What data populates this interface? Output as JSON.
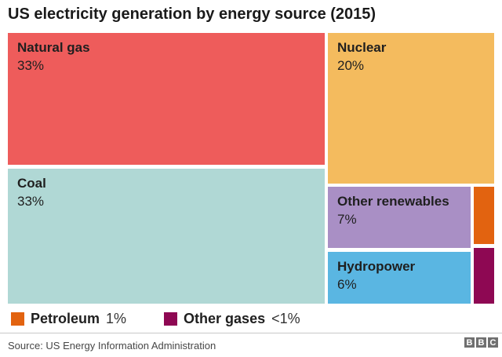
{
  "title": "US electricity generation by energy source (2015)",
  "chart_data": {
    "type": "treemap",
    "title": "US electricity generation by energy source (2015)",
    "series": [
      {
        "name": "Natural gas",
        "value": 33,
        "value_label": "33%",
        "color": "#ee5c5b"
      },
      {
        "name": "Coal",
        "value": 33,
        "value_label": "33%",
        "color": "#b0d8d5"
      },
      {
        "name": "Nuclear",
        "value": 20,
        "value_label": "20%",
        "color": "#f4bb5e"
      },
      {
        "name": "Other renewables",
        "value": 7,
        "value_label": "7%",
        "color": "#a98fc5"
      },
      {
        "name": "Hydropower",
        "value": 6,
        "value_label": "6%",
        "color": "#5ab6e2"
      },
      {
        "name": "Petroleum",
        "value": 1,
        "value_label": "1%",
        "color": "#e26310"
      },
      {
        "name": "Other gases",
        "value": 0.5,
        "value_label": "<1%",
        "color": "#8e0853"
      }
    ],
    "layout_hint": "large tiles labeled inline; Petroleum and Other gases shown as thin right-edge strips with legend below"
  },
  "legend": {
    "items": [
      {
        "label": "Petroleum",
        "value": "1%",
        "color": "#e26310"
      },
      {
        "label": "Other gases",
        "value": "<1%",
        "color": "#8e0853"
      }
    ]
  },
  "footer": {
    "source": "Source: US Energy Information Administration",
    "bbc_letters": [
      "B",
      "B",
      "C"
    ]
  }
}
